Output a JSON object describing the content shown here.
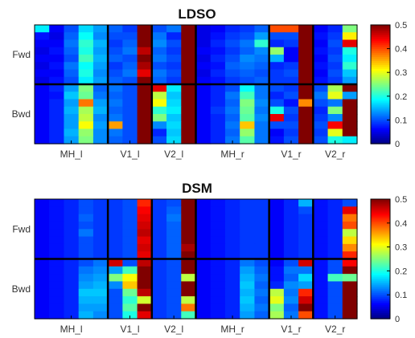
{
  "chart_data": [
    {
      "type": "heatmap",
      "title": "LDSO",
      "row_labels": [
        "Fwd",
        "Bwd"
      ],
      "col_labels": [
        "MH_l",
        "V1_l",
        "V2_l",
        "MH_r",
        "V1_r",
        "V2_r"
      ],
      "colorbar": {
        "min": 0,
        "max": 0.5,
        "ticks": [
          "0",
          "0.1",
          "0.2",
          "0.3",
          "0.4",
          "0.5"
        ],
        "colormap": "jet"
      },
      "blocks": {
        "rows_per_group": 8,
        "cols_per_group": [
          5,
          3,
          3,
          5,
          3,
          3
        ]
      },
      "values": [
        [
          0.18,
          0.06,
          0.1,
          0.17,
          0.14,
          0.11,
          0.09,
          0.5,
          0.1,
          0.12,
          0.5,
          0.05,
          0.06,
          0.08,
          0.09,
          0.11,
          0.4,
          0.4,
          0.5,
          0.06,
          0.08,
          0.25
        ],
        [
          0.07,
          0.05,
          0.11,
          0.19,
          0.13,
          0.1,
          0.1,
          0.5,
          0.12,
          0.08,
          0.5,
          0.05,
          0.07,
          0.09,
          0.1,
          0.14,
          0.1,
          0.1,
          0.5,
          0.07,
          0.09,
          0.32
        ],
        [
          0.06,
          0.06,
          0.12,
          0.21,
          0.15,
          0.09,
          0.11,
          0.5,
          0.13,
          0.1,
          0.5,
          0.05,
          0.08,
          0.1,
          0.12,
          0.21,
          0.08,
          0.09,
          0.5,
          0.06,
          0.1,
          0.45
        ],
        [
          0.05,
          0.07,
          0.11,
          0.2,
          0.14,
          0.1,
          0.12,
          0.47,
          0.11,
          0.09,
          0.5,
          0.06,
          0.07,
          0.09,
          0.11,
          0.13,
          0.26,
          0.06,
          0.5,
          0.07,
          0.09,
          0.2
        ],
        [
          0.06,
          0.06,
          0.1,
          0.22,
          0.15,
          0.11,
          0.1,
          0.5,
          0.12,
          0.1,
          0.5,
          0.05,
          0.08,
          0.1,
          0.13,
          0.12,
          0.15,
          0.06,
          0.5,
          0.06,
          0.1,
          0.18
        ],
        [
          0.05,
          0.07,
          0.12,
          0.19,
          0.14,
          0.09,
          0.11,
          0.48,
          0.1,
          0.09,
          0.5,
          0.06,
          0.07,
          0.11,
          0.12,
          0.11,
          0.08,
          0.09,
          0.5,
          0.07,
          0.09,
          0.21
        ],
        [
          0.06,
          0.06,
          0.11,
          0.2,
          0.13,
          0.1,
          0.12,
          0.45,
          0.12,
          0.1,
          0.5,
          0.05,
          0.08,
          0.1,
          0.11,
          0.1,
          0.09,
          0.1,
          0.5,
          0.06,
          0.1,
          0.16
        ],
        [
          0.05,
          0.07,
          0.1,
          0.18,
          0.14,
          0.11,
          0.1,
          0.5,
          0.11,
          0.09,
          0.5,
          0.06,
          0.07,
          0.09,
          0.1,
          0.11,
          0.09,
          0.09,
          0.5,
          0.07,
          0.09,
          0.14
        ],
        [
          0.06,
          0.08,
          0.14,
          0.25,
          0.11,
          0.12,
          0.1,
          0.5,
          0.45,
          0.18,
          0.5,
          0.06,
          0.08,
          0.1,
          0.19,
          0.12,
          0.1,
          0.09,
          0.5,
          0.1,
          0.27,
          0.5
        ],
        [
          0.06,
          0.07,
          0.16,
          0.24,
          0.12,
          0.11,
          0.1,
          0.5,
          0.28,
          0.16,
          0.5,
          0.06,
          0.08,
          0.12,
          0.22,
          0.12,
          0.08,
          0.1,
          0.5,
          0.12,
          0.3,
          0.14
        ],
        [
          0.06,
          0.08,
          0.14,
          0.38,
          0.14,
          0.12,
          0.1,
          0.5,
          0.31,
          0.17,
          0.5,
          0.06,
          0.08,
          0.11,
          0.25,
          0.13,
          0.1,
          0.07,
          0.37,
          0.1,
          0.12,
          0.5
        ],
        [
          0.06,
          0.08,
          0.15,
          0.27,
          0.15,
          0.11,
          0.1,
          0.5,
          0.21,
          0.18,
          0.5,
          0.06,
          0.09,
          0.12,
          0.24,
          0.12,
          0.2,
          0.1,
          0.5,
          0.08,
          0.25,
          0.5
        ],
        [
          0.06,
          0.08,
          0.14,
          0.28,
          0.13,
          0.12,
          0.1,
          0.5,
          0.25,
          0.16,
          0.5,
          0.06,
          0.08,
          0.11,
          0.23,
          0.13,
          0.45,
          0.09,
          0.5,
          0.09,
          0.13,
          0.5
        ],
        [
          0.06,
          0.08,
          0.14,
          0.31,
          0.14,
          0.36,
          0.1,
          0.5,
          0.13,
          0.17,
          0.5,
          0.06,
          0.08,
          0.12,
          0.34,
          0.12,
          0.1,
          0.1,
          0.5,
          0.1,
          0.44,
          0.5
        ],
        [
          0.06,
          0.08,
          0.15,
          0.26,
          0.13,
          0.12,
          0.1,
          0.5,
          0.08,
          0.16,
          0.5,
          0.06,
          0.08,
          0.11,
          0.26,
          0.12,
          0.06,
          0.09,
          0.5,
          0.09,
          0.3,
          0.5
        ],
        [
          0.06,
          0.08,
          0.14,
          0.25,
          0.13,
          0.11,
          0.1,
          0.5,
          0.1,
          0.17,
          0.5,
          0.06,
          0.08,
          0.12,
          0.23,
          0.12,
          0.07,
          0.1,
          0.5,
          0.1,
          0.2,
          0.18
        ]
      ]
    },
    {
      "type": "heatmap",
      "title": "DSM",
      "row_labels": [
        "Fwd",
        "Bwd"
      ],
      "col_labels": [
        "MH_l",
        "V1_l",
        "V2_l",
        "MH_r",
        "V1_r",
        "V2_r"
      ],
      "colorbar": {
        "min": 0,
        "max": 0.5,
        "ticks": [
          "0",
          "0.1",
          "0.2",
          "0.3",
          "0.4",
          "0.5"
        ],
        "colormap": "jet"
      },
      "blocks": {
        "rows_per_group": 8,
        "cols_per_group": [
          5,
          3,
          3,
          5,
          3,
          3
        ]
      },
      "values": [
        [
          0.06,
          0.07,
          0.08,
          0.1,
          0.09,
          0.09,
          0.1,
          0.42,
          0.09,
          0.1,
          0.5,
          0.06,
          0.07,
          0.08,
          0.09,
          0.09,
          0.06,
          0.08,
          0.15,
          0.07,
          0.08,
          0.1
        ],
        [
          0.06,
          0.07,
          0.08,
          0.1,
          0.09,
          0.09,
          0.1,
          0.44,
          0.09,
          0.11,
          0.5,
          0.06,
          0.07,
          0.08,
          0.09,
          0.09,
          0.06,
          0.08,
          0.1,
          0.07,
          0.08,
          0.45
        ],
        [
          0.06,
          0.07,
          0.08,
          0.11,
          0.09,
          0.09,
          0.1,
          0.45,
          0.09,
          0.12,
          0.5,
          0.06,
          0.07,
          0.08,
          0.09,
          0.09,
          0.06,
          0.08,
          0.09,
          0.07,
          0.08,
          0.38
        ],
        [
          0.06,
          0.07,
          0.08,
          0.1,
          0.09,
          0.09,
          0.1,
          0.46,
          0.09,
          0.11,
          0.5,
          0.06,
          0.07,
          0.08,
          0.09,
          0.09,
          0.06,
          0.08,
          0.09,
          0.07,
          0.08,
          0.4
        ],
        [
          0.06,
          0.07,
          0.08,
          0.12,
          0.09,
          0.09,
          0.1,
          0.47,
          0.09,
          0.11,
          0.5,
          0.06,
          0.07,
          0.08,
          0.09,
          0.09,
          0.06,
          0.08,
          0.09,
          0.07,
          0.08,
          0.28
        ],
        [
          0.06,
          0.07,
          0.08,
          0.1,
          0.09,
          0.09,
          0.1,
          0.45,
          0.09,
          0.11,
          0.5,
          0.06,
          0.07,
          0.08,
          0.09,
          0.09,
          0.06,
          0.08,
          0.09,
          0.07,
          0.08,
          0.33
        ],
        [
          0.06,
          0.07,
          0.08,
          0.1,
          0.09,
          0.09,
          0.1,
          0.46,
          0.09,
          0.11,
          0.48,
          0.06,
          0.07,
          0.08,
          0.09,
          0.09,
          0.06,
          0.08,
          0.09,
          0.07,
          0.08,
          0.37
        ],
        [
          0.06,
          0.07,
          0.08,
          0.1,
          0.09,
          0.09,
          0.1,
          0.45,
          0.09,
          0.11,
          0.5,
          0.06,
          0.07,
          0.08,
          0.09,
          0.09,
          0.06,
          0.08,
          0.09,
          0.07,
          0.08,
          0.42
        ],
        [
          0.06,
          0.07,
          0.08,
          0.1,
          0.12,
          0.46,
          0.1,
          0.47,
          0.09,
          0.1,
          0.5,
          0.06,
          0.07,
          0.08,
          0.12,
          0.1,
          0.06,
          0.1,
          0.46,
          0.07,
          0.1,
          0.44
        ],
        [
          0.06,
          0.07,
          0.08,
          0.12,
          0.13,
          0.14,
          0.22,
          0.5,
          0.09,
          0.1,
          0.5,
          0.06,
          0.07,
          0.08,
          0.14,
          0.11,
          0.07,
          0.12,
          0.12,
          0.07,
          0.1,
          0.5
        ],
        [
          0.06,
          0.07,
          0.08,
          0.13,
          0.14,
          0.25,
          0.31,
          0.5,
          0.09,
          0.1,
          0.28,
          0.06,
          0.07,
          0.08,
          0.15,
          0.12,
          0.07,
          0.11,
          0.17,
          0.07,
          0.22,
          0.24
        ],
        [
          0.06,
          0.07,
          0.08,
          0.14,
          0.15,
          0.13,
          0.34,
          0.5,
          0.09,
          0.1,
          0.5,
          0.06,
          0.07,
          0.08,
          0.16,
          0.11,
          0.08,
          0.13,
          0.14,
          0.07,
          0.1,
          0.5
        ],
        [
          0.06,
          0.07,
          0.08,
          0.16,
          0.16,
          0.1,
          0.24,
          0.47,
          0.09,
          0.1,
          0.5,
          0.06,
          0.07,
          0.08,
          0.15,
          0.12,
          0.28,
          0.12,
          0.42,
          0.07,
          0.1,
          0.5
        ],
        [
          0.06,
          0.07,
          0.08,
          0.15,
          0.15,
          0.1,
          0.21,
          0.29,
          0.09,
          0.1,
          0.28,
          0.06,
          0.07,
          0.08,
          0.16,
          0.11,
          0.3,
          0.13,
          0.46,
          0.07,
          0.1,
          0.5
        ],
        [
          0.06,
          0.07,
          0.08,
          0.14,
          0.14,
          0.1,
          0.23,
          0.5,
          0.09,
          0.1,
          0.38,
          0.06,
          0.07,
          0.08,
          0.15,
          0.12,
          0.25,
          0.11,
          0.5,
          0.07,
          0.1,
          0.5
        ],
        [
          0.06,
          0.07,
          0.08,
          0.15,
          0.13,
          0.1,
          0.2,
          0.45,
          0.09,
          0.1,
          0.22,
          0.06,
          0.07,
          0.08,
          0.14,
          0.11,
          0.27,
          0.12,
          0.4,
          0.07,
          0.1,
          0.5
        ]
      ]
    }
  ]
}
